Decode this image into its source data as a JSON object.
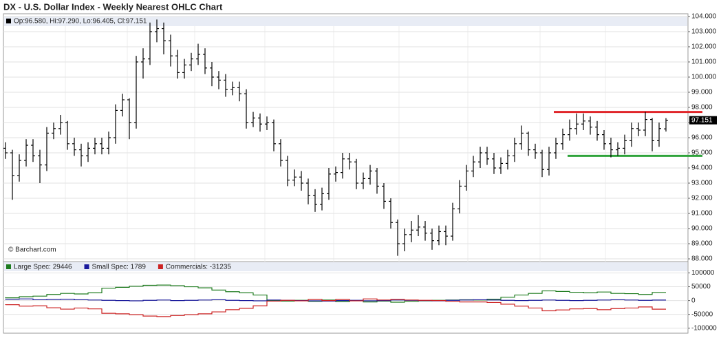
{
  "title": "DX - U.S. Dollar Index - Weekly Nearest OHLC Chart",
  "chart_data": [
    {
      "type": "ohlc",
      "legend": "Op:96.580, Hi:97.290, Lo:96.405, Cl:97.151",
      "last_label": "97.151",
      "credit": "© Barchart.com",
      "color": "#000000",
      "grid": true,
      "ylim": [
        87.82,
        104.18
      ],
      "yticks": [
        {
          "value": 88,
          "label": "88.000"
        },
        {
          "value": 89,
          "label": "89.000"
        },
        {
          "value": 90,
          "label": "90.000"
        },
        {
          "value": 91,
          "label": "91.000"
        },
        {
          "value": 92,
          "label": "92.000"
        },
        {
          "value": 93,
          "label": "93.000"
        },
        {
          "value": 94,
          "label": "94.000"
        },
        {
          "value": 95,
          "label": "95.000"
        },
        {
          "value": 96,
          "label": "96.000"
        },
        {
          "value": 97,
          "label": "97.000"
        },
        {
          "value": 98,
          "label": "98.000"
        },
        {
          "value": 99,
          "label": "99.000"
        },
        {
          "value": 100,
          "label": "100.000"
        },
        {
          "value": 101,
          "label": "101.000"
        },
        {
          "value": 102,
          "label": "102.000"
        },
        {
          "value": 103,
          "label": "103.000"
        },
        {
          "value": 104,
          "label": "104.000"
        }
      ],
      "levels": [
        {
          "value": 97.7,
          "color": "#e0262a",
          "start": 80
        },
        {
          "value": 94.8,
          "color": "#2ea33a",
          "start": 82
        }
      ],
      "ohlc": [
        [
          95.3,
          95.7,
          94.6,
          95.0
        ],
        [
          95.0,
          95.2,
          91.9,
          93.5
        ],
        [
          93.5,
          94.9,
          93.1,
          94.5
        ],
        [
          94.5,
          95.9,
          94.1,
          95.5
        ],
        [
          95.5,
          95.9,
          94.4,
          94.8
        ],
        [
          94.8,
          95.2,
          93.0,
          94.2
        ],
        [
          94.2,
          96.7,
          93.8,
          96.3
        ],
        [
          96.3,
          97.0,
          95.9,
          96.6
        ],
        [
          96.6,
          97.5,
          96.2,
          97.0
        ],
        [
          97.0,
          97.1,
          95.2,
          95.6
        ],
        [
          95.6,
          96.0,
          94.8,
          95.2
        ],
        [
          95.2,
          95.6,
          94.1,
          94.8
        ],
        [
          94.8,
          95.7,
          94.4,
          95.3
        ],
        [
          95.3,
          96.0,
          94.9,
          95.6
        ],
        [
          95.6,
          96.0,
          94.9,
          95.3
        ],
        [
          95.3,
          96.4,
          94.9,
          96.0
        ],
        [
          96.0,
          98.2,
          95.6,
          97.8
        ],
        [
          97.8,
          98.9,
          97.4,
          98.5
        ],
        [
          98.5,
          98.6,
          95.9,
          97.0
        ],
        [
          97.0,
          101.4,
          96.6,
          101.0
        ],
        [
          101.0,
          101.9,
          99.9,
          101.2
        ],
        [
          101.2,
          103.6,
          100.8,
          103.0
        ],
        [
          103.0,
          103.8,
          102.3,
          103.2
        ],
        [
          103.2,
          103.6,
          101.5,
          102.4
        ],
        [
          102.4,
          102.8,
          100.7,
          101.4
        ],
        [
          101.4,
          101.8,
          99.9,
          100.3
        ],
        [
          100.3,
          101.2,
          99.9,
          100.8
        ],
        [
          100.8,
          101.6,
          100.4,
          101.2
        ],
        [
          101.2,
          102.2,
          100.8,
          101.5
        ],
        [
          101.5,
          101.9,
          100.2,
          100.6
        ],
        [
          100.6,
          101.0,
          99.4,
          100.0
        ],
        [
          100.0,
          100.4,
          99.2,
          99.8
        ],
        [
          99.8,
          100.2,
          98.7,
          99.2
        ],
        [
          99.2,
          99.7,
          98.8,
          99.3
        ],
        [
          99.3,
          99.7,
          98.4,
          98.9
        ],
        [
          98.9,
          99.2,
          96.6,
          97.0
        ],
        [
          97.0,
          97.7,
          96.7,
          97.3
        ],
        [
          97.3,
          97.6,
          96.4,
          96.9
        ],
        [
          96.9,
          97.4,
          96.5,
          97.0
        ],
        [
          97.0,
          97.2,
          95.1,
          95.6
        ],
        [
          95.6,
          95.9,
          94.1,
          94.5
        ],
        [
          94.5,
          94.8,
          92.8,
          93.2
        ],
        [
          93.2,
          93.9,
          92.8,
          93.4
        ],
        [
          93.4,
          93.8,
          92.5,
          93.0
        ],
        [
          93.0,
          93.3,
          91.6,
          92.2
        ],
        [
          92.2,
          92.6,
          91.1,
          91.6
        ],
        [
          91.6,
          92.7,
          91.2,
          92.3
        ],
        [
          92.3,
          94.0,
          91.9,
          93.6
        ],
        [
          93.6,
          94.1,
          93.1,
          93.7
        ],
        [
          93.7,
          95.0,
          93.3,
          94.6
        ],
        [
          94.6,
          95.0,
          93.9,
          94.4
        ],
        [
          94.4,
          94.6,
          92.6,
          93.0
        ],
        [
          93.0,
          93.7,
          92.6,
          93.3
        ],
        [
          93.3,
          94.2,
          92.9,
          93.8
        ],
        [
          93.8,
          94.0,
          92.3,
          92.8
        ],
        [
          92.8,
          93.0,
          91.3,
          91.8
        ],
        [
          91.8,
          92.0,
          90.0,
          90.4
        ],
        [
          90.4,
          90.6,
          88.2,
          89.0
        ],
        [
          89.0,
          90.0,
          88.5,
          89.6
        ],
        [
          89.6,
          90.5,
          89.1,
          89.9
        ],
        [
          89.9,
          90.9,
          89.5,
          90.1
        ],
        [
          90.1,
          90.5,
          89.2,
          89.7
        ],
        [
          89.7,
          90.0,
          88.6,
          89.2
        ],
        [
          89.2,
          90.2,
          88.9,
          89.8
        ],
        [
          89.8,
          90.2,
          88.9,
          89.5
        ],
        [
          89.5,
          91.7,
          89.2,
          91.3
        ],
        [
          91.3,
          93.2,
          91.0,
          92.8
        ],
        [
          92.8,
          94.2,
          92.5,
          93.8
        ],
        [
          93.8,
          94.8,
          93.4,
          94.4
        ],
        [
          94.4,
          95.4,
          94.0,
          95.0
        ],
        [
          95.0,
          95.4,
          94.2,
          94.6
        ],
        [
          94.6,
          95.0,
          93.6,
          94.0
        ],
        [
          94.0,
          94.7,
          93.6,
          94.3
        ],
        [
          94.3,
          95.2,
          93.9,
          94.8
        ],
        [
          94.8,
          96.0,
          94.4,
          95.6
        ],
        [
          95.6,
          96.8,
          95.2,
          96.3
        ],
        [
          96.3,
          96.4,
          94.8,
          95.2
        ],
        [
          95.2,
          95.6,
          94.6,
          95.0
        ],
        [
          95.0,
          95.2,
          93.4,
          93.9
        ],
        [
          93.9,
          95.4,
          93.5,
          95.0
        ],
        [
          95.0,
          96.0,
          94.6,
          95.6
        ],
        [
          95.6,
          96.6,
          95.2,
          96.2
        ],
        [
          96.2,
          97.2,
          95.8,
          96.6
        ],
        [
          96.6,
          97.6,
          96.2,
          96.9
        ],
        [
          96.9,
          97.6,
          96.5,
          97.1
        ],
        [
          97.1,
          97.4,
          96.2,
          96.7
        ],
        [
          96.7,
          97.1,
          95.8,
          96.2
        ],
        [
          96.2,
          96.5,
          95.2,
          95.6
        ],
        [
          95.6,
          96.0,
          94.7,
          95.2
        ],
        [
          95.2,
          95.7,
          94.8,
          95.3
        ],
        [
          95.3,
          96.2,
          94.9,
          95.8
        ],
        [
          95.8,
          97.0,
          95.4,
          96.6
        ],
        [
          96.6,
          97.0,
          96.1,
          96.5
        ],
        [
          96.5,
          97.7,
          96.1,
          97.2
        ],
        [
          97.2,
          97.3,
          95.1,
          95.8
        ],
        [
          95.8,
          97.0,
          95.4,
          96.6
        ],
        [
          96.58,
          97.29,
          96.405,
          97.151
        ]
      ]
    },
    {
      "type": "step",
      "grid": true,
      "ylim": [
        -118000,
        141000
      ],
      "yticks": [
        -100000,
        -50000,
        0,
        50000,
        100000
      ],
      "series": [
        {
          "name": "Large Spec: 29446",
          "color": "#1e7b1e",
          "values": [
            12000,
            10000,
            14000,
            16000,
            22000,
            26000,
            24000,
            28000,
            45000,
            48000,
            52000,
            55000,
            56000,
            54000,
            50000,
            46000,
            38000,
            32000,
            28000,
            20000,
            0,
            -2000,
            1000,
            -3000,
            2000,
            -4000,
            0,
            -5000,
            -2000,
            -6000,
            -3000,
            -1000,
            1000,
            2000,
            3000,
            2000,
            5000,
            12000,
            20000,
            26000,
            35000,
            33000,
            30000,
            28000,
            31000,
            26000,
            25000,
            22000,
            29446
          ]
        },
        {
          "name": "Small Spec: 1789",
          "color": "#1a1a9c",
          "values": [
            4000,
            5000,
            6000,
            3000,
            4000,
            5000,
            3000,
            2000,
            1000,
            0,
            -1000,
            1000,
            2000,
            0,
            1000,
            2000,
            3000,
            1000,
            0,
            -1000,
            2000,
            1000,
            0,
            -1000,
            -2000,
            0,
            1000,
            -1000,
            0,
            2000,
            1000,
            0,
            -1000,
            1000,
            2000,
            3000,
            2000,
            1000,
            0,
            1000,
            2000,
            1000,
            0,
            1000,
            2000,
            3000,
            2000,
            1000,
            1789
          ]
        },
        {
          "name": "Commercials: -31235",
          "color": "#cc2222",
          "values": [
            -16000,
            -15000,
            -20000,
            -19000,
            -26000,
            -31000,
            -27000,
            -30000,
            -46000,
            -48000,
            -51000,
            -56000,
            -58000,
            -54000,
            -51000,
            -48000,
            -41000,
            -33000,
            -28000,
            -19000,
            -2000,
            1000,
            -1000,
            4000,
            0,
            4000,
            -1000,
            6000,
            2000,
            4000,
            2000,
            1000,
            0,
            -3000,
            -5000,
            -5000,
            -7000,
            -13000,
            -20000,
            -27000,
            -37000,
            -34000,
            -30000,
            -29000,
            -33000,
            -29000,
            -27000,
            -23000,
            -31235
          ]
        }
      ]
    }
  ]
}
